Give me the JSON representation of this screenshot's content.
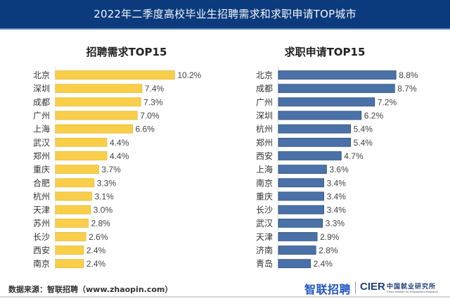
{
  "title": "2022年二季度高校毕业生招聘需求和求职申请TOP城市",
  "chart_data": [
    {
      "type": "bar",
      "orientation": "horizontal",
      "title": "招聘需求TOP15",
      "categories": [
        "北京",
        "深圳",
        "成都",
        "广州",
        "上海",
        "武汉",
        "郑州",
        "重庆",
        "合肥",
        "杭州",
        "天津",
        "苏州",
        "长沙",
        "西安",
        "南京"
      ],
      "values": [
        10.2,
        7.4,
        7.3,
        7.0,
        6.6,
        4.4,
        4.4,
        3.7,
        3.3,
        3.1,
        3.0,
        2.8,
        2.6,
        2.4,
        2.4
      ],
      "labels": [
        "10.2%",
        "7.4%",
        "7.3%",
        "7.0%",
        "6.6%",
        "4.4%",
        "4.4%",
        "3.7%",
        "3.3%",
        "3.1%",
        "3.0%",
        "2.8%",
        "2.6%",
        "2.4%",
        "2.4%"
      ],
      "unit": "%",
      "color": "#f9cf4a",
      "xlabel": "",
      "ylabel": "",
      "grid": false
    },
    {
      "type": "bar",
      "orientation": "horizontal",
      "title": "求职申请TOP15",
      "categories": [
        "北京",
        "成都",
        "广州",
        "深圳",
        "杭州",
        "郑州",
        "西安",
        "上海",
        "南京",
        "重庆",
        "长沙",
        "武汉",
        "天津",
        "济南",
        "青岛"
      ],
      "values": [
        8.8,
        8.7,
        7.2,
        6.2,
        5.4,
        5.4,
        4.7,
        3.6,
        3.4,
        3.4,
        3.4,
        3.3,
        2.9,
        2.8,
        2.4
      ],
      "labels": [
        "8.8%",
        "8.7%",
        "7.2%",
        "6.2%",
        "5.4%",
        "5.4%",
        "4.7%",
        "3.6%",
        "3.4%",
        "3.4%",
        "3.4%",
        "3.3%",
        "2.9%",
        "2.8%",
        "2.4%"
      ],
      "unit": "%",
      "color": "#4a72a8",
      "xlabel": "",
      "ylabel": "",
      "grid": false
    }
  ],
  "footer": {
    "source_label": "数据来源：智联招聘（www.zhaopin.com）",
    "logo_zhaopin": "智联招聘",
    "logo_cier": "CIER",
    "logo_cier_cn": "中国就业研究所",
    "logo_cier_en": "China Institute for Employment Research"
  }
}
